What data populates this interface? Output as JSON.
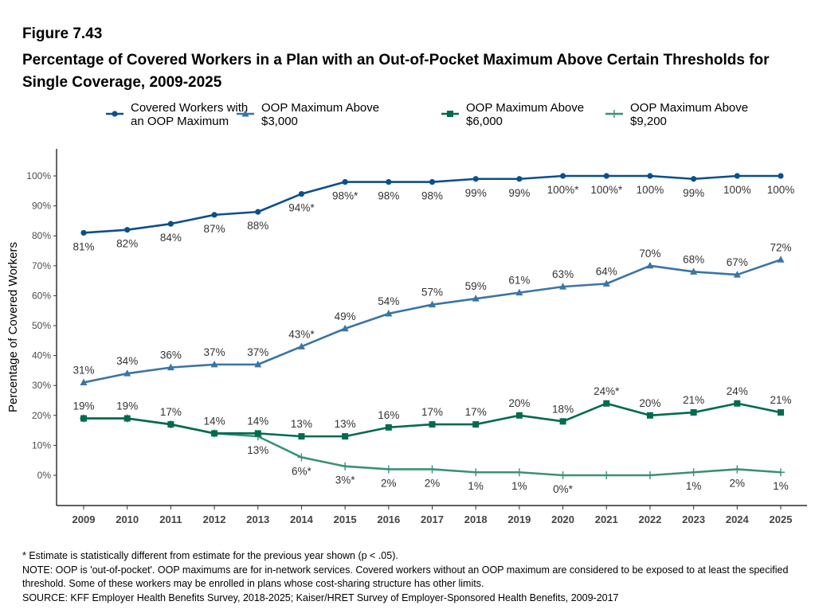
{
  "figure_label": "Figure 7.43",
  "title": "Percentage of Covered Workers in a Plan with an Out-of-Pocket Maximum Above Certain Thresholds for Single Coverage, 2009-2025",
  "notes": [
    "* Estimate is statistically different from estimate for the previous year shown (p < .05).",
    "NOTE: OOP is 'out-of-pocket'. OOP maximums are for in-network services. Covered workers without an OOP maximum are considered to be exposed to at least the specified threshold. Some of these workers may be enrolled in plans whose cost-sharing structure has other limits.",
    "SOURCE: KFF Employer Health Benefits Survey, 2018-2025; Kaiser/HRET Survey of Employer-Sponsored Health Benefits, 2009-2017"
  ],
  "chart_data": {
    "type": "line",
    "ylabel": "Percentage of Covered Workers",
    "xlabel": "",
    "ylim": [
      0,
      100
    ],
    "yticks": [
      "0%",
      "10%",
      "20%",
      "30%",
      "40%",
      "50%",
      "60%",
      "70%",
      "80%",
      "90%",
      "100%"
    ],
    "grid": false,
    "legend_placement": "top",
    "x": [
      "2009",
      "2010",
      "2011",
      "2012",
      "2013",
      "2014",
      "2015",
      "2016",
      "2017",
      "2018",
      "2019",
      "2020",
      "2021",
      "2022",
      "2023",
      "2024",
      "2025"
    ],
    "series": [
      {
        "name": [
          "Covered Workers with",
          "an OOP Maximum"
        ],
        "color": "#0b4f8c",
        "marker": "circle",
        "label_pos": "below",
        "values": [
          81,
          82,
          84,
          87,
          88,
          94,
          98,
          98,
          98,
          99,
          99,
          100,
          100,
          100,
          99,
          100,
          100
        ],
        "labels": [
          "81%",
          "82%",
          "84%",
          "87%",
          "88%",
          "94%*",
          "98%*",
          "98%",
          "98%",
          "99%",
          "99%",
          "100%*",
          "100%*",
          "100%",
          "99%",
          "100%",
          "100%"
        ]
      },
      {
        "name": [
          "OOP Maximum Above",
          "$3,000"
        ],
        "color": "#3b74a6",
        "marker": "triangle",
        "label_pos": "above",
        "values": [
          31,
          34,
          36,
          37,
          37,
          43,
          49,
          54,
          57,
          59,
          61,
          63,
          64,
          70,
          68,
          67,
          72
        ],
        "labels": [
          "31%",
          "34%",
          "36%",
          "37%",
          "37%",
          "43%*",
          "49%",
          "54%",
          "57%",
          "59%",
          "61%",
          "63%",
          "64%",
          "70%",
          "68%",
          "67%",
          "72%"
        ]
      },
      {
        "name": [
          "OOP Maximum Above",
          "$6,000"
        ],
        "color": "#006b4f",
        "marker": "square",
        "label_pos": "above",
        "values": [
          19,
          19,
          17,
          14,
          14,
          13,
          13,
          16,
          17,
          17,
          20,
          18,
          24,
          20,
          21,
          24,
          21
        ],
        "labels": [
          "19%",
          "19%",
          "17%",
          "14%",
          "14%",
          "13%",
          "13%",
          "16%",
          "17%",
          "17%",
          "20%",
          "18%",
          "24%*",
          "20%",
          "21%",
          "24%",
          "21%"
        ]
      },
      {
        "name": [
          "OOP Maximum Above",
          "$9,200"
        ],
        "color": "#3a9078",
        "marker": "plus",
        "label_pos": "below",
        "values": [
          19,
          19,
          17,
          14,
          13,
          6,
          3,
          2,
          2,
          1,
          1,
          0,
          0,
          0,
          1,
          2,
          1
        ],
        "labels": [
          "",
          "",
          "",
          "",
          "13%",
          "6%*",
          "3%*",
          "2%",
          "2%",
          "1%",
          "1%",
          "0%*",
          "",
          "",
          "1%",
          "2%",
          "1%"
        ]
      }
    ]
  }
}
